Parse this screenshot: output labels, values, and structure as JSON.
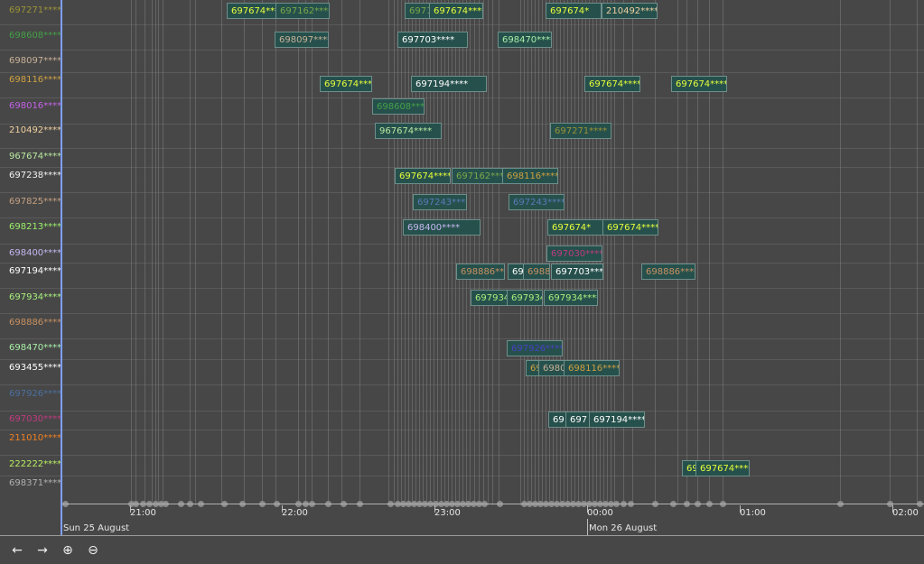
{
  "lanes": [
    {
      "label": "697271****",
      "color": "#9a9236"
    },
    {
      "label": "698608****",
      "color": "#43a047"
    },
    {
      "label": "698097****",
      "color": "#c8b096"
    },
    {
      "label": "698116****",
      "color": "#cfa040"
    },
    {
      "label": "698016****",
      "color": "#c462e6"
    },
    {
      "label": "210492****",
      "color": "#f0d0a0"
    },
    {
      "label": "967674****",
      "color": "#b8e8a0"
    },
    {
      "label": "697238****",
      "color": "#f2f2f2"
    },
    {
      "label": "697825****",
      "color": "#c4a080"
    },
    {
      "label": "698213****",
      "color": "#9cf06a"
    },
    {
      "label": "698400****",
      "color": "#c4b8f0"
    },
    {
      "label": "697194****",
      "color": "#ffffff"
    },
    {
      "label": "697934****",
      "color": "#a8f07c"
    },
    {
      "label": "698886****",
      "color": "#c89060"
    },
    {
      "label": "698470****",
      "color": "#a8f0a8"
    },
    {
      "label": "693455****",
      "color": "#ffffff"
    },
    {
      "label": "697926****",
      "color": "#4a70a0"
    },
    {
      "label": "697030****",
      "color": "#c03a80"
    },
    {
      "label": "211010****",
      "color": "#f08020"
    },
    {
      "label": "222222****",
      "color": "#b8f060"
    },
    {
      "label": "698371****",
      "color": "#b0b0b0"
    }
  ],
  "events": [
    {
      "lane": 0,
      "label": "697674****",
      "color": "#e8ff3a"
    },
    {
      "lane": 0,
      "label": "697162****",
      "color": "#7aa848"
    },
    {
      "lane": 0,
      "label": "6971",
      "color": "#7aa848"
    },
    {
      "lane": 0,
      "label": "697674****",
      "color": "#e8ff3a"
    },
    {
      "lane": 0,
      "label": "697674*",
      "color": "#e8ff3a"
    },
    {
      "lane": 0,
      "label": "210492****",
      "color": "#f0d0a0"
    },
    {
      "lane": 1,
      "label": "698097****",
      "color": "#c8b096"
    },
    {
      "lane": 1,
      "label": "697703****",
      "color": "#ffffff"
    },
    {
      "lane": 1,
      "label": "698470****",
      "color": "#a8f0a8"
    },
    {
      "lane": 3,
      "label": "697674****",
      "color": "#e8ff3a"
    },
    {
      "lane": 3,
      "label": "697194****",
      "color": "#ffffff"
    },
    {
      "lane": 3,
      "label": "697674****",
      "color": "#e8ff3a"
    },
    {
      "lane": 3,
      "label": "697674****",
      "color": "#e8ff3a"
    },
    {
      "lane": 4,
      "label": "698608****",
      "color": "#43a047"
    },
    {
      "lane": 5,
      "label": "967674****",
      "color": "#b8e8a0"
    },
    {
      "lane": 5,
      "label": "697271****",
      "color": "#9a9236"
    },
    {
      "lane": 7,
      "label": "697674****",
      "color": "#e8ff3a"
    },
    {
      "lane": 7,
      "label": "697162****",
      "color": "#7aa848"
    },
    {
      "lane": 7,
      "label": "698116****",
      "color": "#cfa040"
    },
    {
      "lane": 8,
      "label": "697243****",
      "color": "#5a7ab8"
    },
    {
      "lane": 8,
      "label": "697243****",
      "color": "#5a7ab8"
    },
    {
      "lane": 9,
      "label": "698400****",
      "color": "#c4b8f0"
    },
    {
      "lane": 9,
      "label": "697674*",
      "color": "#e8ff3a"
    },
    {
      "lane": 9,
      "label": "697674****",
      "color": "#e8ff3a"
    },
    {
      "lane": 10,
      "label": "697030****",
      "color": "#c03a80"
    },
    {
      "lane": 11,
      "label": "698886**",
      "color": "#c89060"
    },
    {
      "lane": 11,
      "label": "69",
      "color": "#ffffff"
    },
    {
      "lane": 11,
      "label": "698886",
      "color": "#c89060"
    },
    {
      "lane": 11,
      "label": "697703****",
      "color": "#ffffff"
    },
    {
      "lane": 11,
      "label": "698886****",
      "color": "#c89060"
    },
    {
      "lane": 12,
      "label": "697934",
      "color": "#a8f07c"
    },
    {
      "lane": 12,
      "label": "697934",
      "color": "#a8f07c"
    },
    {
      "lane": 12,
      "label": "697934****",
      "color": "#a8f07c"
    },
    {
      "lane": 14,
      "label": "697926****",
      "color": "#4a40c0"
    },
    {
      "lane": 15,
      "label": "69",
      "color": "#cfa040"
    },
    {
      "lane": 15,
      "label": "6980",
      "color": "#c8b096"
    },
    {
      "lane": 15,
      "label": "698116****",
      "color": "#cfa040"
    },
    {
      "lane": 17,
      "label": "69",
      "color": "#ffffff"
    },
    {
      "lane": 17,
      "label": "697",
      "color": "#ffffff"
    },
    {
      "lane": 17,
      "label": "697194****",
      "color": "#ffffff"
    },
    {
      "lane": 19,
      "label": "69",
      "color": "#e8ff3a"
    },
    {
      "lane": 19,
      "label": "697674****",
      "color": "#e8ff3a"
    }
  ],
  "axis": {
    "times": [
      "21:00",
      "22:00",
      "23:00",
      "00:00",
      "01:00",
      "02:00"
    ],
    "dates": [
      "Sun 25 August",
      "Mon 26 August"
    ]
  },
  "controls": {
    "prev": "←",
    "next": "→",
    "zoom_in": "⊕",
    "zoom_out": "⊖"
  }
}
